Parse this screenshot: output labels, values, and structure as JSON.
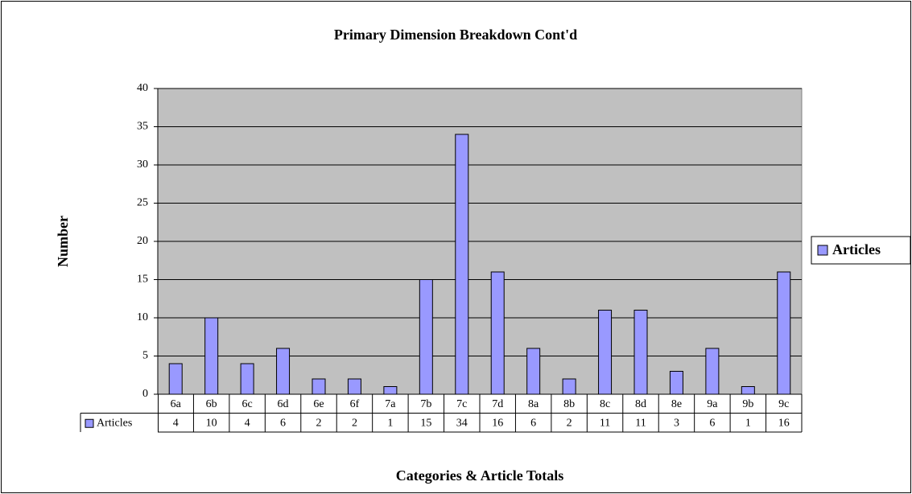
{
  "chart_data": {
    "type": "bar",
    "title": "Primary Dimension Breakdown Cont'd",
    "x_label": "Categories & Article Totals",
    "y_label": "Number",
    "categories": [
      "6a",
      "6b",
      "6c",
      "6d",
      "6e",
      "6f",
      "7a",
      "7b",
      "7c",
      "7d",
      "8a",
      "8b",
      "8c",
      "8d",
      "8e",
      "9a",
      "9b",
      "9c"
    ],
    "series": [
      {
        "name": "Articles",
        "color": "#9999ff",
        "values": [
          4,
          10,
          4,
          6,
          2,
          2,
          1,
          15,
          34,
          16,
          6,
          2,
          11,
          11,
          3,
          6,
          1,
          16
        ]
      }
    ],
    "ylim": [
      0,
      40
    ],
    "yticks": [
      0,
      5,
      10,
      15,
      20,
      25,
      30,
      35,
      40
    ],
    "grid": true,
    "legend": "right",
    "data_table": true
  }
}
